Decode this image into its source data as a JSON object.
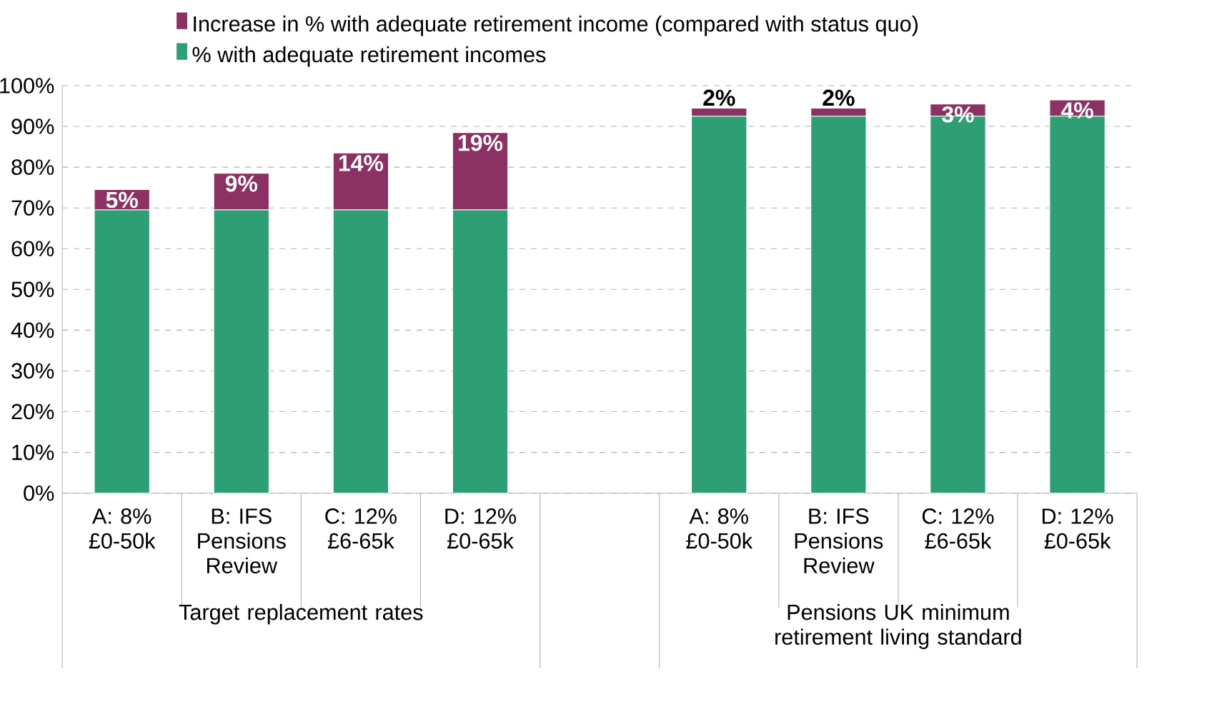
{
  "chart_data": {
    "type": "bar",
    "stacked": true,
    "categories": [
      "A: 8% £0-50k",
      "B: IFS Pensions Review",
      "C: 12% £6-65k",
      "D: 12% £0-65k",
      null,
      "A: 8% £0-50k",
      "B: IFS Pensions Review",
      "C: 12% £6-65k",
      "D: 12% £0-65k"
    ],
    "series": [
      {
        "name": "% with adequate retirement incomes",
        "color": "#2e9e74",
        "values": [
          69.5,
          69.5,
          69.5,
          69.5,
          null,
          92.5,
          92.5,
          92.5,
          92.5
        ]
      },
      {
        "name": "Increase in % with adequate retirement income (compared with status quo)",
        "color": "#8b3163",
        "values": [
          5,
          9,
          14,
          19,
          null,
          2,
          2,
          3,
          4
        ],
        "value_labels": [
          "5%",
          "9%",
          "14%",
          "19%",
          null,
          "2%",
          "2%",
          "3%",
          "4%"
        ]
      }
    ],
    "ylim": [
      0,
      100
    ],
    "yticks": [
      {
        "value": 0,
        "label": "0%"
      },
      {
        "value": 10,
        "label": "10%"
      },
      {
        "value": 20,
        "label": "20%"
      },
      {
        "value": 30,
        "label": "30%"
      },
      {
        "value": 40,
        "label": "40%"
      },
      {
        "value": 50,
        "label": "50%"
      },
      {
        "value": 60,
        "label": "60%"
      },
      {
        "value": 70,
        "label": "70%"
      },
      {
        "value": 80,
        "label": "80%"
      },
      {
        "value": 90,
        "label": "90%"
      },
      {
        "value": 100,
        "label": "100%"
      }
    ],
    "grid": "y",
    "legend": "top",
    "annotations": [
      "Target replacement rates",
      "Pensions UK minimum retirement living standard"
    ]
  }
}
